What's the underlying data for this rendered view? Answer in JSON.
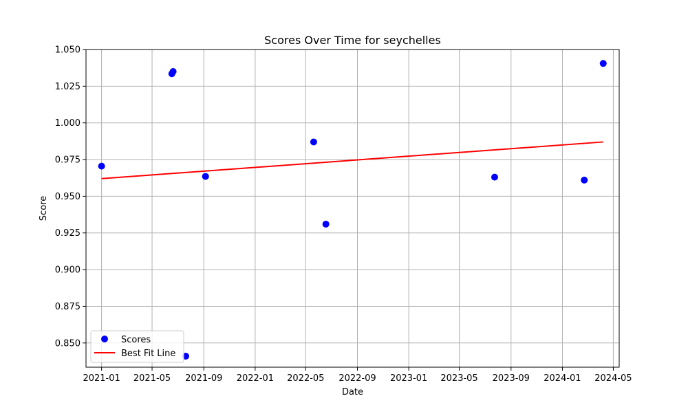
{
  "chart_data": {
    "type": "scatter",
    "title": "Scores Over Time for seychelles",
    "xlabel": "Date",
    "ylabel": "Score",
    "x_axis_type": "date",
    "xlim": [
      "2020-11-25",
      "2024-05-15"
    ],
    "ylim": [
      0.8335,
      1.05
    ],
    "grid": true,
    "legend": {
      "placement": "lower-left",
      "entries": [
        {
          "label": "Scores",
          "marker": "circle",
          "color": "#0000ff"
        },
        {
          "label": "Best Fit Line",
          "marker": "line",
          "color": "#ff0000"
        }
      ]
    },
    "x_ticks": [
      "2021-01",
      "2021-05",
      "2021-09",
      "2022-01",
      "2022-05",
      "2022-09",
      "2023-01",
      "2023-05",
      "2023-09",
      "2024-01",
      "2024-05"
    ],
    "y_ticks": [
      "0.850",
      "0.875",
      "0.900",
      "0.925",
      "0.950",
      "0.975",
      "1.000",
      "1.025",
      "1.050"
    ],
    "series": [
      {
        "name": "Scores",
        "kind": "scatter",
        "color": "#0000ff",
        "points": [
          {
            "x": "2021-01-01",
            "y": 0.9705
          },
          {
            "x": "2021-06-17",
            "y": 1.0335
          },
          {
            "x": "2021-06-20",
            "y": 1.035
          },
          {
            "x": "2021-07-20",
            "y": 0.841
          },
          {
            "x": "2021-09-05",
            "y": 0.9635
          },
          {
            "x": "2022-05-20",
            "y": 0.987
          },
          {
            "x": "2022-06-18",
            "y": 0.931
          },
          {
            "x": "2023-07-24",
            "y": 0.963
          },
          {
            "x": "2024-02-22",
            "y": 0.961
          },
          {
            "x": "2024-04-07",
            "y": 1.0405
          }
        ]
      },
      {
        "name": "Best Fit Line",
        "kind": "line",
        "color": "#ff0000",
        "points": [
          {
            "x": "2021-01-01",
            "y": 0.962
          },
          {
            "x": "2024-04-07",
            "y": 0.987
          }
        ]
      }
    ]
  }
}
